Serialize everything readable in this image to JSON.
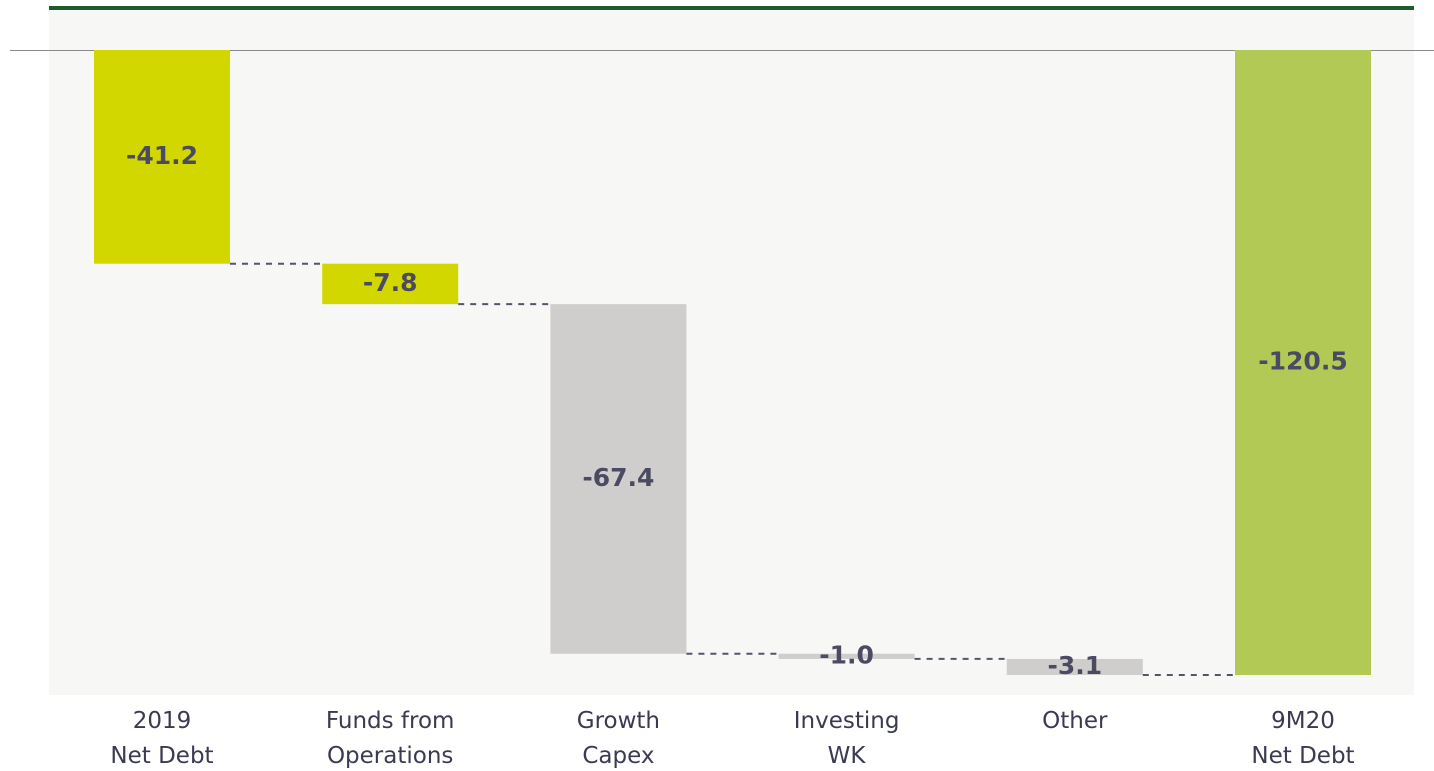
{
  "chart_data": {
    "type": "waterfall",
    "categories": [
      "2019\nNet Debt",
      "Funds from\nOperations",
      "Growth\nCapex",
      "Investing\nWK",
      "Other",
      "9M20\nNet Debt"
    ],
    "values": [
      -41.2,
      -7.8,
      -67.4,
      -1.0,
      -3.1,
      -120.5
    ],
    "value_labels": [
      "-41.2",
      "-7.8",
      "-67.4",
      "-1.0",
      "-3.1",
      "-120.5"
    ],
    "colors": [
      "#d3d700",
      "#d3d700",
      "#cfcecc",
      "#cfcecc",
      "#cfcecc",
      "#b2c955"
    ]
  }
}
